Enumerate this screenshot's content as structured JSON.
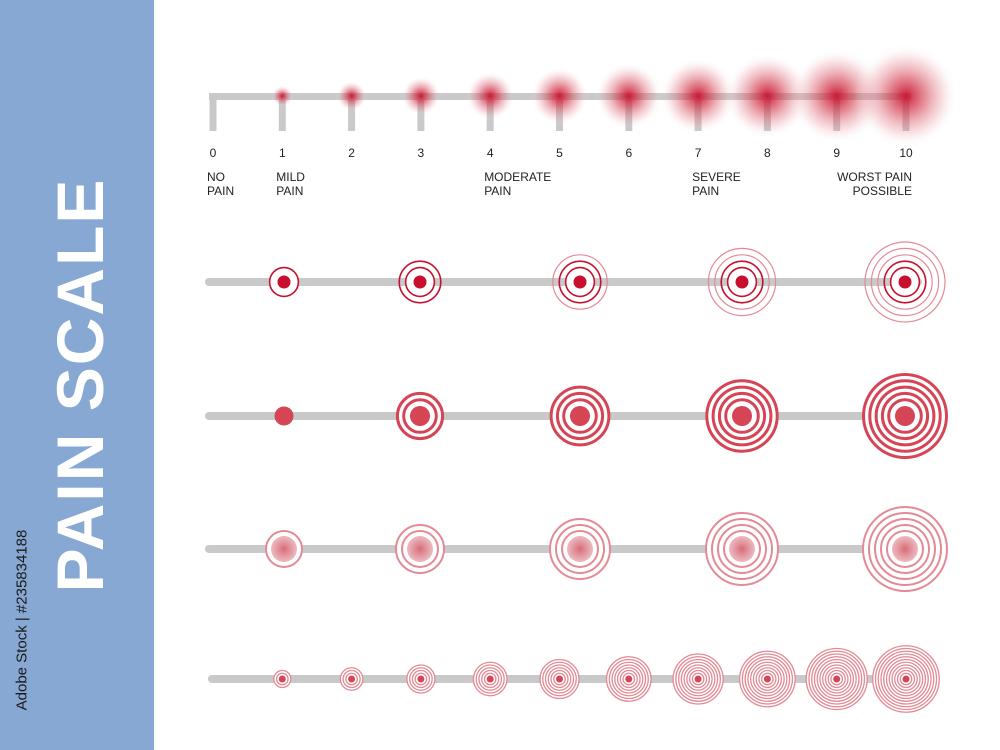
{
  "sidebar": {
    "title": "PAIN SCALE",
    "credit": "Adobe Stock | #235834188"
  },
  "scale": {
    "ticks": [
      "0",
      "1",
      "2",
      "3",
      "4",
      "5",
      "6",
      "7",
      "8",
      "9",
      "10"
    ],
    "descriptors": [
      {
        "text": "NO\nPAIN",
        "at": 0,
        "align": "left"
      },
      {
        "text": "MILD\nPAIN",
        "at": 1,
        "align": "left"
      },
      {
        "text": "MODERATE\nPAIN",
        "at": 4,
        "align": "left"
      },
      {
        "text": "SEVERE\nPAIN",
        "at": 7,
        "align": "left"
      },
      {
        "text": "WORST PAIN\nPOSSIBLE",
        "at": 10,
        "align": "right"
      }
    ]
  },
  "colors": {
    "track": "#c9c9c9",
    "accent": "#c8102e",
    "ring": "#d64556",
    "ring_light": "#e38a94",
    "fill_soft": "#d9707b",
    "sidebar": "#87a8d2"
  },
  "rows": [
    {
      "style": "blur-glow",
      "levels": [
        1,
        2,
        3,
        4,
        5,
        6,
        7,
        8,
        9,
        10
      ]
    },
    {
      "style": "target-rings",
      "levels": [
        1,
        2,
        3,
        4,
        5
      ]
    },
    {
      "style": "bold-rings",
      "levels": [
        1,
        2,
        3,
        4,
        5
      ]
    },
    {
      "style": "soft-filled-rings",
      "levels": [
        1,
        2,
        3,
        4,
        5
      ]
    },
    {
      "style": "concentric-rings",
      "levels": [
        1,
        2,
        3,
        4,
        5,
        6,
        7,
        8,
        9,
        10
      ]
    }
  ]
}
